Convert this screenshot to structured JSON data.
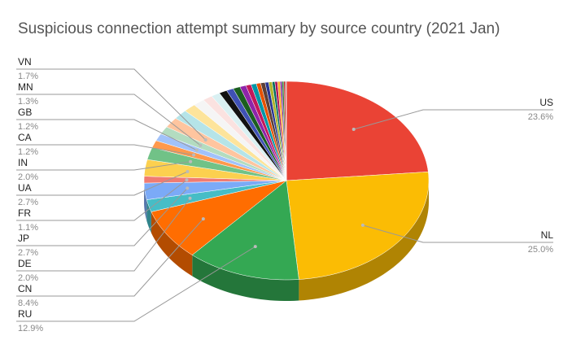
{
  "chart_data": {
    "type": "pie3d",
    "title": "Suspicious connection attempt summary by source country (2021 Jan)",
    "categories": [
      "US",
      "NL",
      "RU",
      "CN",
      "DE",
      "JP",
      "FR",
      "UA",
      "IN",
      "CA",
      "GB",
      "MN",
      "VN",
      null,
      null,
      null,
      null,
      null,
      null,
      null,
      null,
      null,
      null,
      null,
      null,
      null,
      null,
      null,
      null,
      null,
      null,
      null,
      null,
      null,
      null
    ],
    "values": [
      23.6,
      25.0,
      12.9,
      8.4,
      2.0,
      2.7,
      1.1,
      2.7,
      2.0,
      1.2,
      1.2,
      1.3,
      1.7,
      1.6,
      1.4,
      1.3,
      1.1,
      1.0,
      0.9,
      0.8,
      0.8,
      0.7,
      0.6,
      0.6,
      0.5,
      0.5,
      0.4,
      0.4,
      0.3,
      0.3,
      0.3,
      0.2,
      0.2,
      0.2,
      0.1
    ],
    "value_labels": [
      "23.6%",
      "25.0%",
      "12.9%",
      "8.4%",
      "2.0%",
      "2.7%",
      "1.1%",
      "2.7%",
      "2.0%",
      "1.2%",
      "1.2%",
      "1.3%",
      "1.7%",
      null,
      null,
      null,
      null,
      null,
      null,
      null,
      null,
      null,
      null,
      null,
      null,
      null,
      null,
      null,
      null,
      null,
      null,
      null,
      null,
      null,
      null
    ],
    "colors": [
      "#ea4335",
      "#fbbc04",
      "#34a853",
      "#ff6d01",
      "#46bdc6",
      "#7baaf7",
      "#f07b72",
      "#fcd04f",
      "#71c287",
      "#ff994d",
      "#a1c2fa",
      "#b3dcc0",
      "#ffc59f",
      "#b5e4e8",
      "#fde49b",
      "#f5f5f5",
      "#fbe2e0",
      "#d9f0f2",
      "#111111",
      "#3f51b5",
      "#1b5e20",
      "#8e24aa",
      "#c2185b",
      "#0097a7",
      "#e65100",
      "#5d4037",
      "#283593",
      "#afb42b",
      "#00695c",
      "#ad1457",
      "#f9a825",
      "#6a1b9a",
      "#2e7d32",
      "#c62828",
      "#9e9e9e"
    ]
  }
}
